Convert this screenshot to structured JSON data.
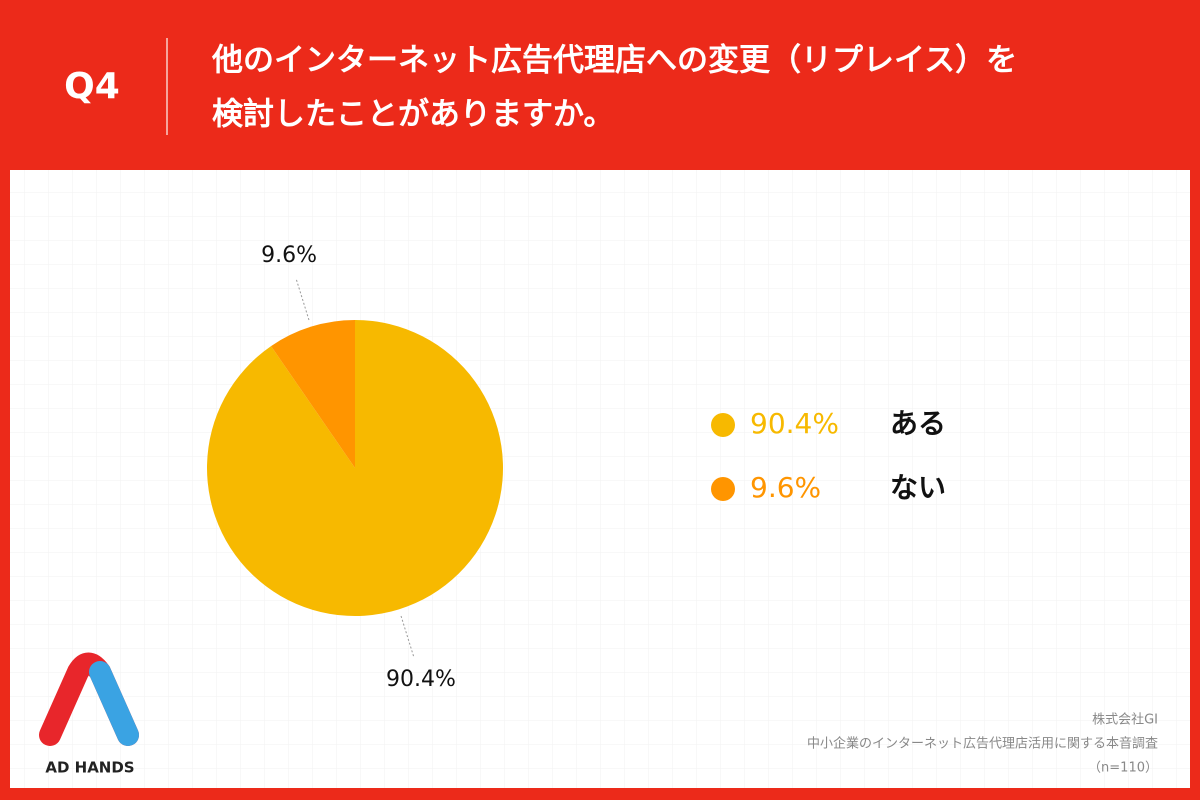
{
  "header": {
    "question": "Q4"
  },
  "chart_data": {
    "type": "pie",
    "title": [
      "他のインターネット広告代理店への変更（リプレイス）を",
      "検討したことがありますか。"
    ],
    "categories": [
      "ある",
      "ない"
    ],
    "values": [
      90.4,
      9.6
    ],
    "value_labels": [
      "90.4%",
      "9.6%"
    ],
    "colors": [
      "#f7b900",
      "#ff9500"
    ]
  },
  "footer": {
    "company": "株式会社GI",
    "survey": "中小企業のインターネット広告代理店活用に関する本音調査",
    "sample": "（n=110）"
  },
  "logo": {
    "text": "AD HANDS"
  }
}
